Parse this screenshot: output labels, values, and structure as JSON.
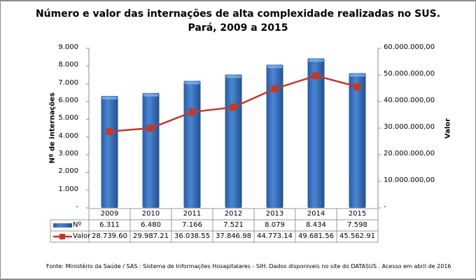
{
  "chart_data": {
    "type": "bar+line",
    "title": "Número e valor das internações de alta complexidade realizadas no SUS.",
    "subtitle": "Pará, 2009 a 2015",
    "categories": [
      "2009",
      "2010",
      "2011",
      "2012",
      "2013",
      "2014",
      "2015"
    ],
    "ylabel_left": "Nº de internações",
    "ylabel_right": "Valor",
    "ylim_left": [
      0,
      9000
    ],
    "ylim_right": [
      0,
      60000000
    ],
    "yticks_left": [
      "-",
      "1.000",
      "2.000",
      "3.000",
      "4.000",
      "5.000",
      "6.000",
      "7.000",
      "8.000",
      "9.000"
    ],
    "yticks_right": [
      "-",
      "10.000.000,00",
      "20.000.000,00",
      "30.000.000,00",
      "40.000.000,00",
      "50.000.000,00",
      "60.000.000,00"
    ],
    "grid": false,
    "legend": "data-table",
    "series": [
      {
        "name": "Nº",
        "type": "bar",
        "axis": "left",
        "color": "#3a73c0",
        "values": [
          6311,
          6480,
          7166,
          7521,
          8079,
          8434,
          7598
        ],
        "labels": [
          "6.311",
          "6.480",
          "7.166",
          "7.521",
          "8.079",
          "8.434",
          "7.598"
        ]
      },
      {
        "name": "Valor",
        "type": "line",
        "axis": "right",
        "color": "#c0392b",
        "values": [
          28739600,
          29987210,
          36038550,
          37846980,
          44773140,
          49681560,
          45562910
        ],
        "labels": [
          "28.739.60",
          "29.987.21",
          "36.038.55",
          "37.846.98",
          "44.773.14",
          "49.681.56",
          "45.562.91"
        ]
      }
    ]
  },
  "source": "Fonte:  Ministério da Saúde / SAS : Sistema de Informações Hosapitalares - SIH. Dados disponiveis no site do DATASUS . Acesso em abril de 2016"
}
